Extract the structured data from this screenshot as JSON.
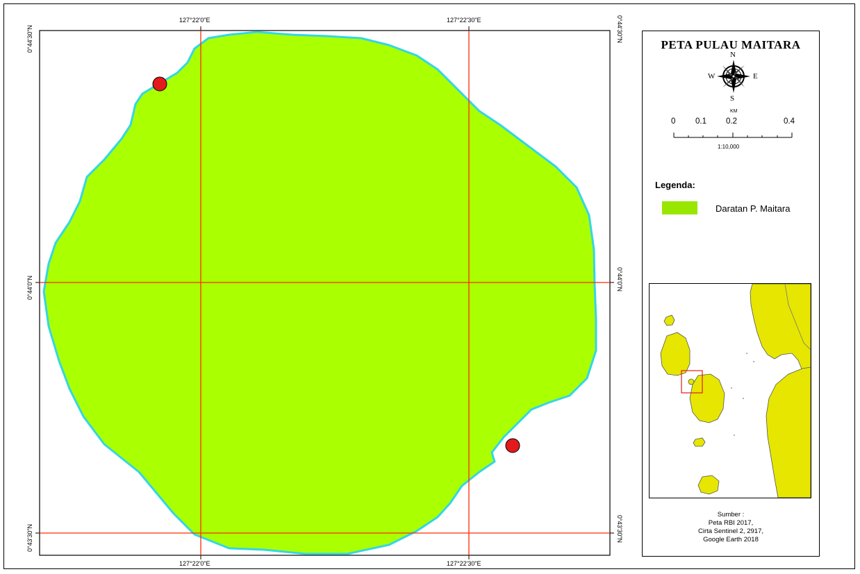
{
  "map": {
    "title": "PETA PULAU MAITARA",
    "grid_labels": {
      "lon_left": "127°22'0\"E",
      "lon_right": "127°22'30\"E",
      "lat_top": "0°44'30\"N",
      "lat_mid": "0°44'0\"N",
      "lat_bottom": "0°43'30\"N"
    },
    "compass": {
      "n": "N",
      "s": "S",
      "e": "E",
      "w": "W"
    },
    "scale": {
      "unit": "KM",
      "ticks": [
        "0",
        "0.1",
        "0.2",
        "0.4"
      ],
      "ratio": "1:10,000"
    },
    "legend": {
      "title": "Legenda:",
      "items": [
        {
          "label": "Daratan P. Maitara",
          "color": "#99e600"
        }
      ]
    },
    "source": {
      "lines": [
        "Sumber :",
        "Peta RBI 2017,",
        "Cirta Sentinel 2, 2917,",
        "Google Earth 2018"
      ]
    },
    "colors": {
      "land": "#aaff00",
      "shoreline": "#33d6e6",
      "grid": "#ff0000",
      "marker": "#e31a1c",
      "inset_land": "#e6e600"
    },
    "markers": [
      "point-marker-1",
      "point-marker-2"
    ]
  }
}
